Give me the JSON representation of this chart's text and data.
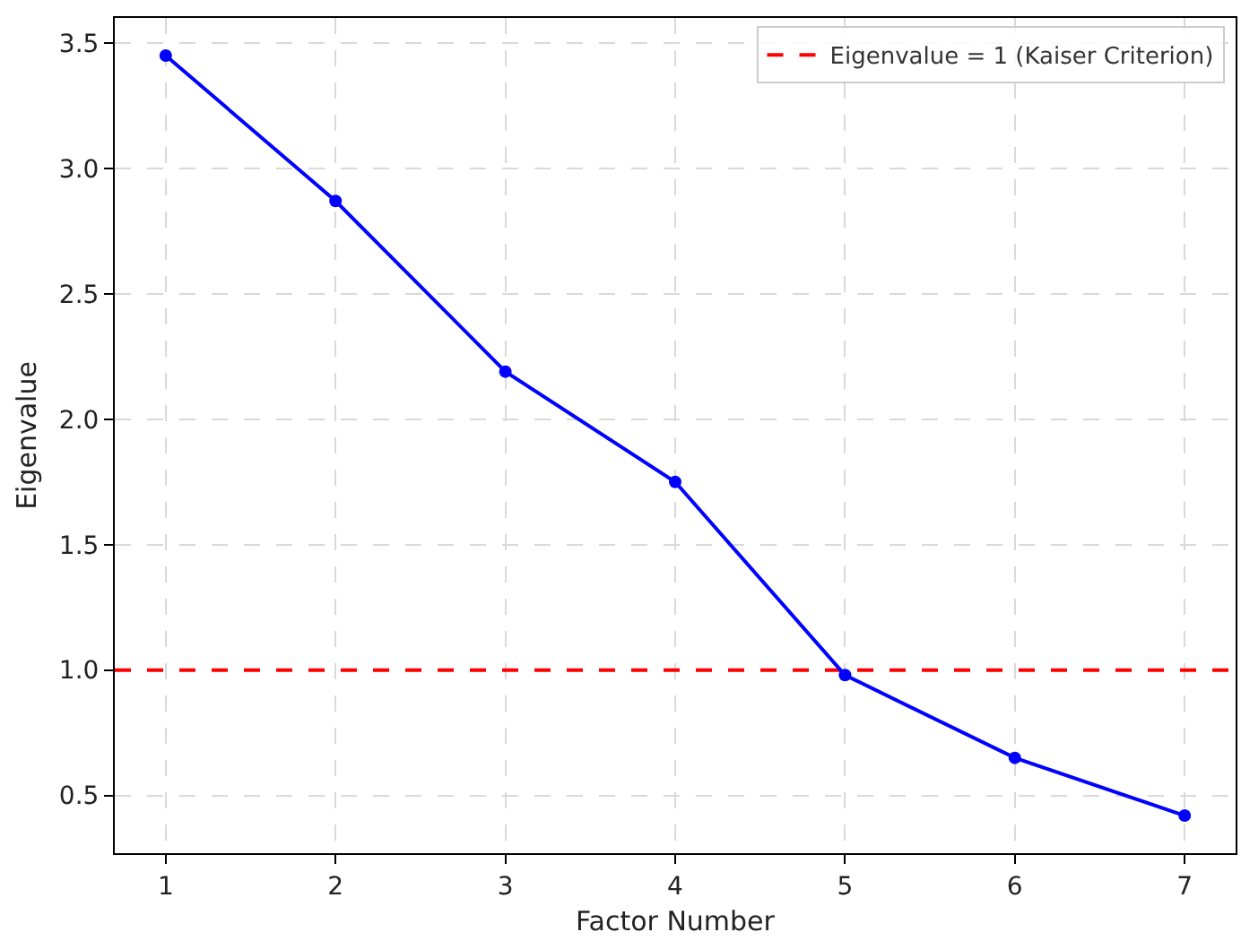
{
  "chart_data": {
    "type": "line",
    "xlabel": "Factor Number",
    "ylabel": "Eigenvalue",
    "x": [
      1,
      2,
      3,
      4,
      5,
      6,
      7
    ],
    "series": [
      {
        "color": "#0000ff",
        "values": [
          3.45,
          2.87,
          2.19,
          1.75,
          0.98,
          0.65,
          0.42
        ]
      }
    ],
    "xlim": [
      0.7,
      7.3
    ],
    "xticks": [
      1,
      2,
      3,
      4,
      5,
      6,
      7
    ],
    "ylim": [
      0.27,
      3.6
    ],
    "yticks": [
      0.5,
      {
        "value": 1,
        "label": "1.0"
      },
      1.5,
      {
        "value": 2,
        "label": "2.0"
      },
      2.5,
      {
        "value": 3,
        "label": "3.0"
      },
      3.5
    ],
    "ref_lines": [
      {
        "axis": "y",
        "value": 1,
        "label": "Eigenvalue = 1 (Kaiser Criterion)",
        "color": "#ff0000",
        "line_style": "dashed"
      }
    ],
    "grid": true,
    "legend": "top right",
    "marker": "circle",
    "line_style": "solid"
  }
}
